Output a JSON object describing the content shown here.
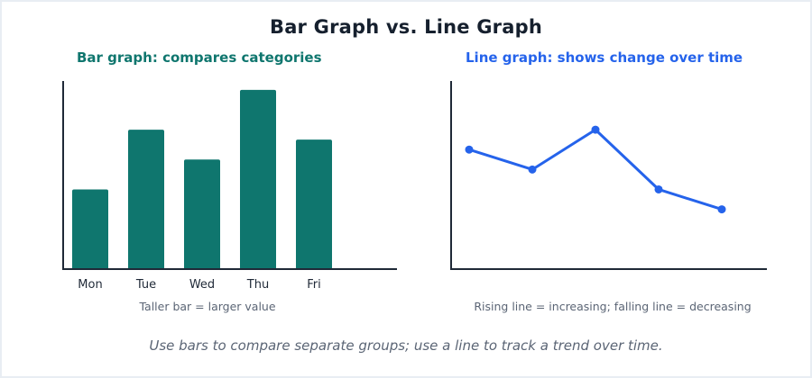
{
  "title": "Bar Graph vs. Line Graph",
  "footer": "Use bars to compare separate groups; use a line to track a trend over time.",
  "colors": {
    "bar": "#0f766e",
    "line": "#2563eb",
    "axis": "#1f2937",
    "title": "#16202e",
    "muted": "#5b6575"
  },
  "chart_data": [
    {
      "type": "bar",
      "title": "Bar graph: compares categories",
      "categories": [
        "Mon",
        "Tue",
        "Wed",
        "Thu",
        "Fri"
      ],
      "values": [
        4,
        7,
        5.5,
        9,
        6.5
      ],
      "ylim": [
        0,
        9.5
      ],
      "caption": "Taller bar = larger value",
      "grid": false
    },
    {
      "type": "line",
      "title": "Line graph: shows change over time",
      "x": [
        1,
        2,
        3,
        4,
        5
      ],
      "values": [
        6,
        5,
        7,
        4,
        3
      ],
      "ylim": [
        0,
        9.5
      ],
      "caption": "Rising line = increasing; falling line = decreasing",
      "grid": false
    }
  ]
}
